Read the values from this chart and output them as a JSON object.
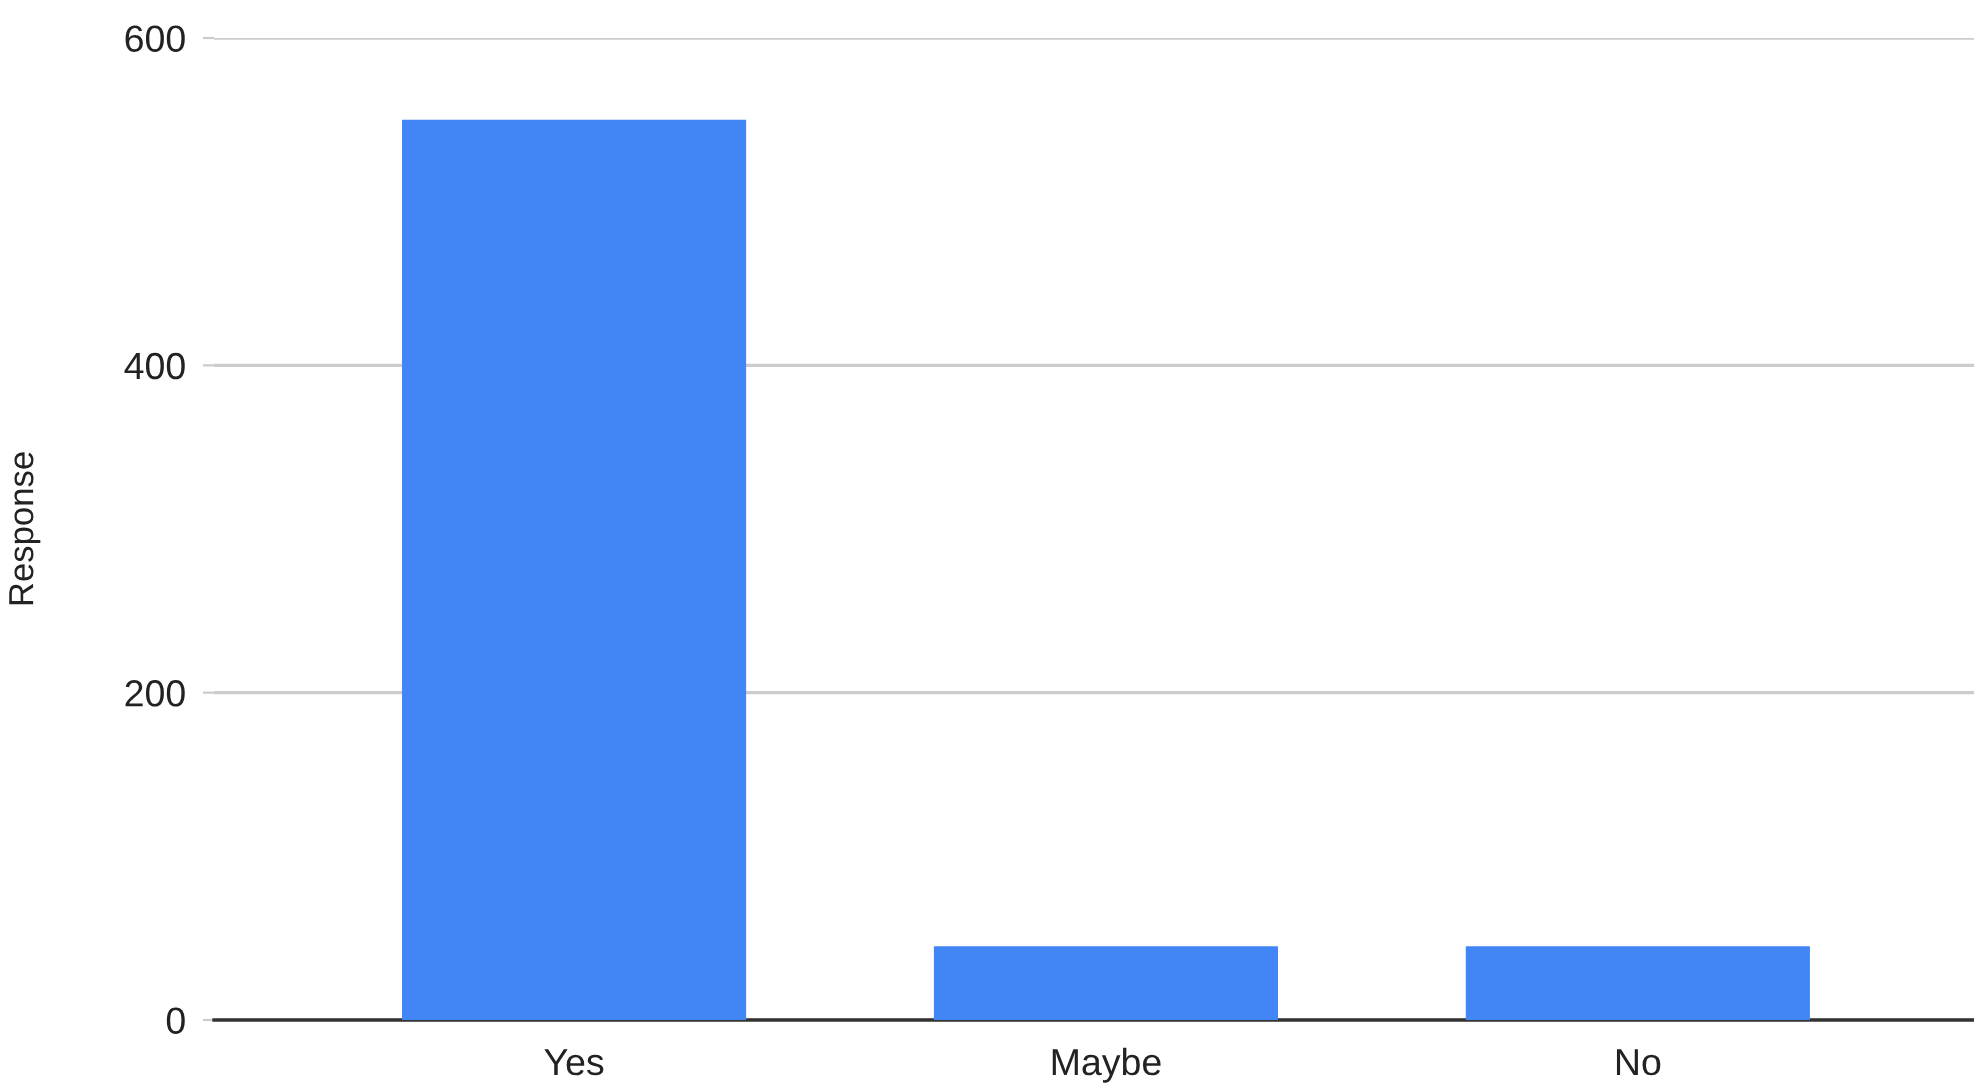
{
  "chart_data": {
    "type": "bar",
    "ylabel": "Response",
    "categories": [
      "Yes",
      "Maybe",
      "No"
    ],
    "values": [
      550,
      45,
      45
    ],
    "color": "#4285f4",
    "ylim": [
      0,
      600
    ],
    "yticks": [
      0,
      200,
      400,
      600
    ],
    "grid": "y",
    "legend": false
  }
}
